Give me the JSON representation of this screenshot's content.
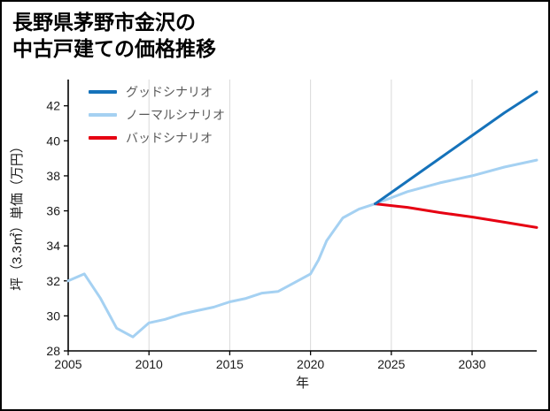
{
  "title": {
    "line1": "長野県茅野市金沢の",
    "line2": "中古戸建ての価格推移"
  },
  "chart_data": {
    "type": "line",
    "title": "長野県茅野市金沢の中古戸建ての価格推移",
    "xlabel": "年",
    "ylabel": "坪（3.3㎡）単価（万円）",
    "xlim": [
      2005,
      2034
    ],
    "ylim": [
      28,
      43.5
    ],
    "x_ticks": [
      2005,
      2010,
      2015,
      2020,
      2025,
      2030
    ],
    "y_ticks": [
      28,
      30,
      32,
      34,
      36,
      38,
      40,
      42
    ],
    "grid": "vertical",
    "grid_color": "#d9d9d9",
    "axis_color": "#000000",
    "legend_position": "upper-left",
    "series": [
      {
        "name": "グッドシナリオ",
        "color": "#1572ba",
        "x": [
          2024,
          2026,
          2028,
          2030,
          2032,
          2034
        ],
        "y": [
          36.4,
          37.7,
          39.0,
          40.3,
          41.6,
          42.8
        ]
      },
      {
        "name": "ノーマルシナリオ",
        "color": "#a5d1f2",
        "x": [
          2005,
          2006,
          2007,
          2008,
          2009,
          2010,
          2011,
          2012,
          2013,
          2014,
          2015,
          2016,
          2017,
          2018,
          2019,
          2020,
          2020.5,
          2021,
          2022,
          2023,
          2024,
          2026,
          2028,
          2030,
          2032,
          2034
        ],
        "y": [
          32.0,
          32.4,
          31.0,
          29.3,
          28.8,
          29.6,
          29.8,
          30.1,
          30.3,
          30.5,
          30.8,
          31.0,
          31.3,
          31.4,
          31.9,
          32.4,
          33.2,
          34.3,
          35.6,
          36.1,
          36.4,
          37.1,
          37.6,
          38.0,
          38.5,
          38.9
        ]
      },
      {
        "name": "バッドシナリオ",
        "color": "#e60012",
        "x": [
          2024,
          2026,
          2028,
          2030,
          2032,
          2034
        ],
        "y": [
          36.4,
          36.2,
          35.9,
          35.65,
          35.35,
          35.05
        ]
      }
    ]
  }
}
